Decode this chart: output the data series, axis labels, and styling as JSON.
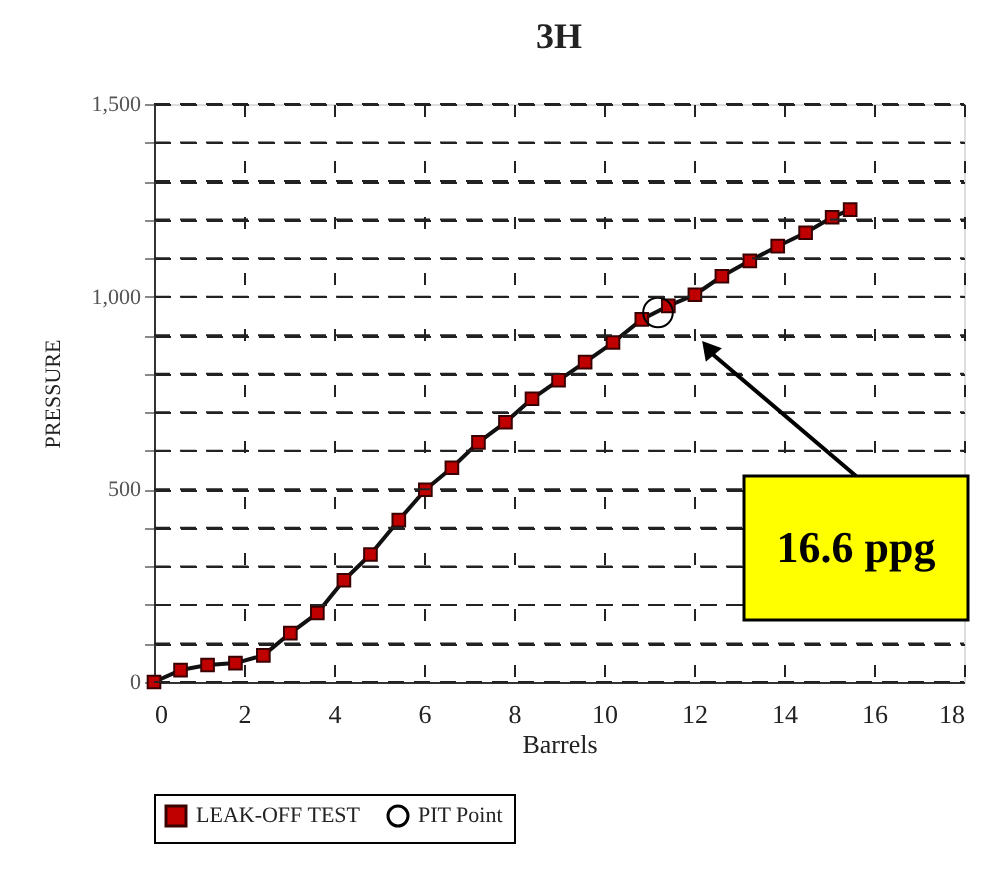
{
  "chart_data": {
    "type": "line",
    "title": "3H",
    "xlabel": "Barrels",
    "ylabel": "PRESSURE",
    "xlim": [
      0,
      18
    ],
    "xticks": [
      0,
      2,
      4,
      6,
      8,
      10,
      12,
      14,
      16,
      18
    ],
    "ylim": [
      0,
      1500
    ],
    "yticks": [
      0,
      {
        "value": 100,
        "label": null
      },
      {
        "value": 200,
        "label": null
      },
      {
        "value": 300,
        "label": null
      },
      {
        "value": 400,
        "label": null
      },
      500,
      {
        "value": 600,
        "label": null
      },
      {
        "value": 700,
        "label": null
      },
      {
        "value": 800,
        "label": null
      },
      {
        "value": 900,
        "label": null
      },
      {
        "value": 1000,
        "label": "1,000"
      },
      {
        "value": 1100,
        "label": null
      },
      {
        "value": 1200,
        "label": null
      },
      {
        "value": 1300,
        "label": null
      },
      {
        "value": 1400,
        "label": null
      },
      {
        "value": 1500,
        "label": "1,500"
      }
    ],
    "grid": true,
    "legend": "bottom",
    "series": [
      {
        "name": "LEAK-OFF TEST",
        "marker": "square",
        "color": "#c00000",
        "x": [
          0,
          0.59,
          1.19,
          1.81,
          2.43,
          3.03,
          3.63,
          4.22,
          4.81,
          5.44,
          6.03,
          6.62,
          7.21,
          7.81,
          8.4,
          8.99,
          9.58,
          10.2,
          10.84,
          11.43,
          12.02,
          12.62,
          13.24,
          13.86,
          14.48,
          15.07,
          15.47
        ],
        "values": [
          0,
          31,
          44,
          49,
          69,
          127,
          179,
          264,
          331,
          420,
          499,
          556,
          622,
          674,
          735,
          783,
          830,
          881,
          941,
          976,
          1005,
          1053,
          1093,
          1131,
          1166,
          1206,
          1226
        ]
      },
      {
        "name": "PIT Point",
        "type": "scatter",
        "marker": "circle",
        "color": "#000000",
        "x": [
          11.2
        ],
        "values": [
          959
        ]
      }
    ],
    "annotations": [
      "16.6 ppg"
    ]
  }
}
